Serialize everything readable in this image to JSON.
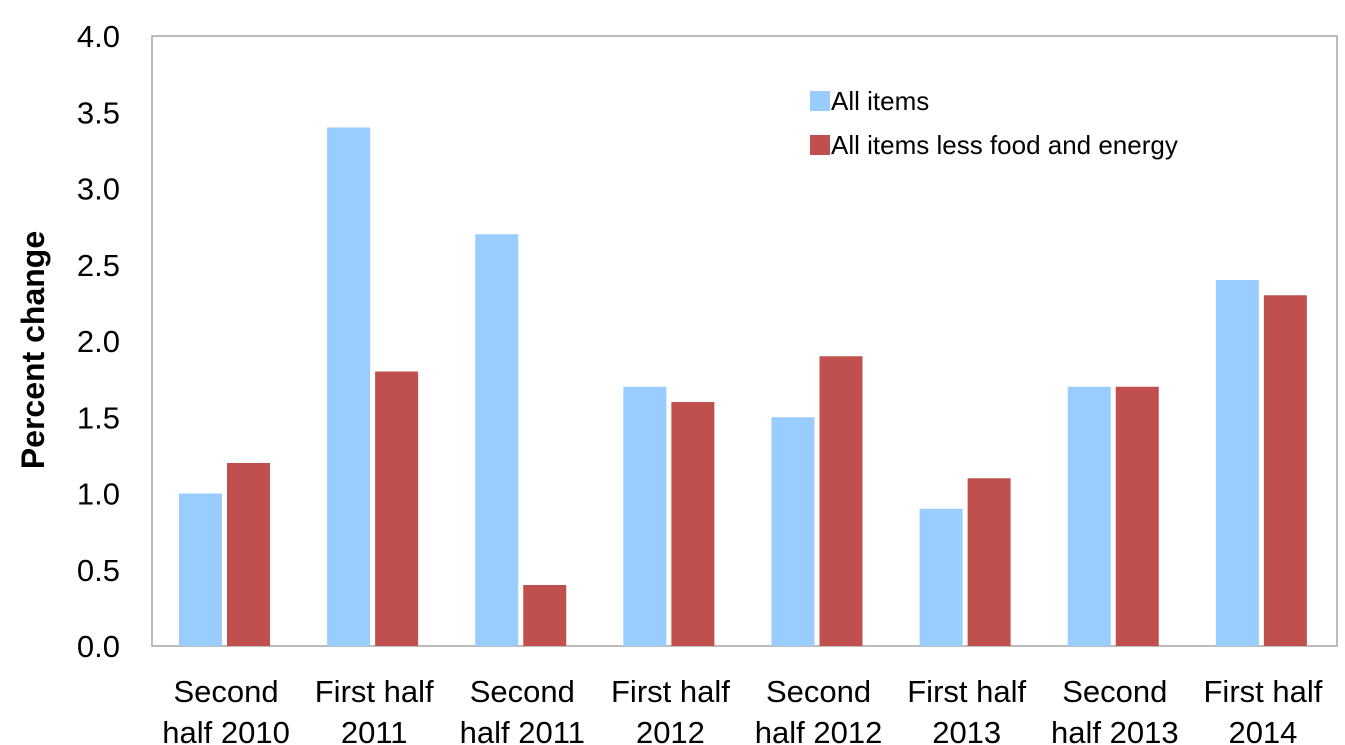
{
  "chart_data": {
    "type": "bar",
    "title": "",
    "xlabel": "",
    "ylabel": "Percent change",
    "ylim": [
      0,
      4.0
    ],
    "yticks": [
      "0.0",
      "0.5",
      "1.0",
      "1.5",
      "2.0",
      "2.5",
      "3.0",
      "3.5",
      "4.0"
    ],
    "grid": false,
    "legend_position": "top-right",
    "categories": [
      [
        "Second",
        "half 2010"
      ],
      [
        "First half",
        "2011"
      ],
      [
        "Second",
        "half 2011"
      ],
      [
        "First half",
        "2012"
      ],
      [
        "Second",
        "half 2012"
      ],
      [
        "First half",
        "2013"
      ],
      [
        "Second",
        "half 2013"
      ],
      [
        "First half",
        "2014"
      ]
    ],
    "series": [
      {
        "name": "All items",
        "color": "#99ccff",
        "values": [
          1.0,
          3.4,
          2.7,
          1.7,
          1.5,
          0.9,
          1.7,
          2.4
        ]
      },
      {
        "name": "All items less food and energy",
        "color": "#c0504d",
        "values": [
          1.2,
          1.8,
          0.4,
          1.6,
          1.9,
          1.1,
          1.7,
          2.3
        ]
      }
    ]
  }
}
